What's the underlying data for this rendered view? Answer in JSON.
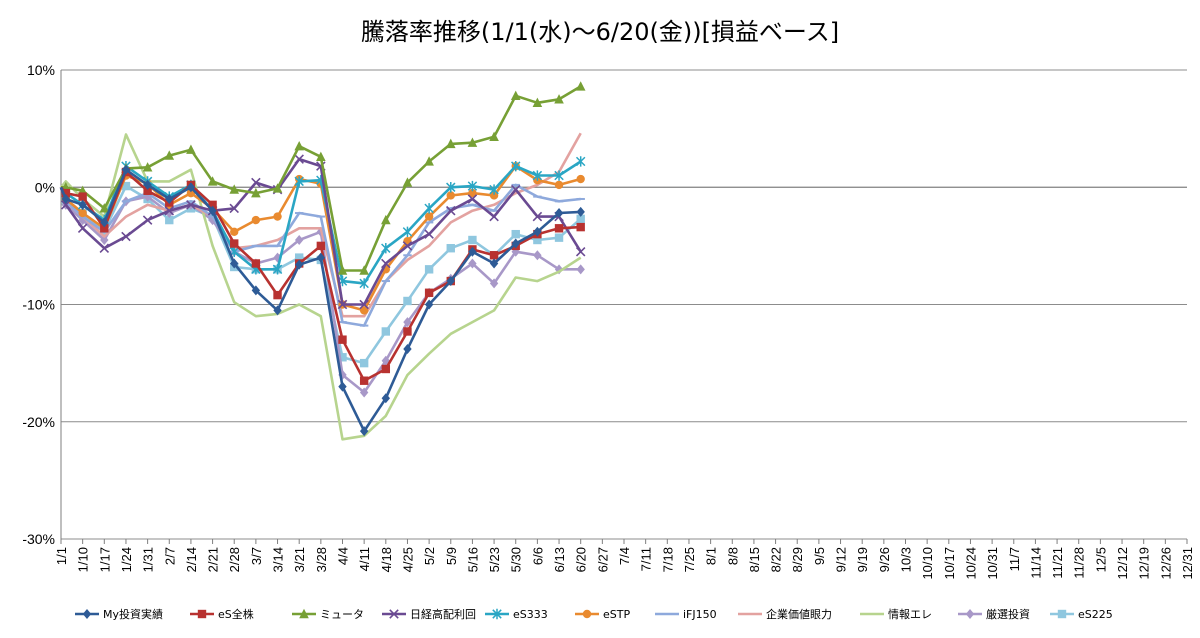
{
  "chart_data": {
    "type": "line",
    "title": "騰落率推移(1/1(水)～6/20(金))[損益ベース]",
    "xlabel": "",
    "ylabel": "",
    "ylim": [
      -30,
      10
    ],
    "yticks": [
      10,
      0,
      -10,
      -20,
      -30
    ],
    "ytick_labels": [
      "10%",
      "0%",
      "-10%",
      "-20%",
      "-30%"
    ],
    "grid": true,
    "legend_position": "bottom",
    "categories": [
      "1/1",
      "1/10",
      "1/17",
      "1/24",
      "1/31",
      "2/7",
      "2/14",
      "2/21",
      "2/28",
      "3/7",
      "3/14",
      "3/21",
      "3/28",
      "4/4",
      "4/11",
      "4/18",
      "4/25",
      "5/2",
      "5/9",
      "5/16",
      "5/23",
      "5/30",
      "6/6",
      "6/13",
      "6/20",
      "6/27",
      "7/4",
      "7/11",
      "7/18",
      "7/25",
      "8/1",
      "8/8",
      "8/15",
      "8/22",
      "8/29",
      "9/5",
      "9/12",
      "9/19",
      "9/26",
      "10/3",
      "10/10",
      "10/17",
      "10/24",
      "10/31",
      "11/7",
      "11/14",
      "11/21",
      "11/28",
      "12/5",
      "12/12",
      "12/19",
      "12/26",
      "12/31"
    ],
    "x": [
      "1/1",
      "1/3",
      "1/10",
      "1/17",
      "1/24",
      "1/31",
      "2/7",
      "2/14",
      "2/21",
      "2/28",
      "3/7",
      "3/14",
      "3/21",
      "3/28",
      "4/4",
      "4/11",
      "4/18",
      "4/25",
      "5/2",
      "5/9",
      "5/16",
      "5/23",
      "5/30",
      "6/6",
      "6/13",
      "6/20"
    ],
    "series": [
      {
        "name": "My投資実績",
        "color": "#2e5b96",
        "marker": "diamond",
        "values": [
          0,
          -1.0,
          -1.5,
          -3.0,
          1.5,
          0.2,
          -1.0,
          0.0,
          -2.0,
          -6.5,
          -8.8,
          -10.5,
          -6.6,
          -6.0,
          -17.0,
          -20.8,
          -18.0,
          -13.8,
          -10.0,
          -8.0,
          -5.5,
          -6.5,
          -4.8,
          -3.8,
          -2.2,
          -2.1
        ]
      },
      {
        "name": "eS全株",
        "color": "#b83230",
        "marker": "square",
        "values": [
          0,
          -0.5,
          -0.8,
          -3.5,
          1.3,
          -0.3,
          -1.3,
          0.2,
          -1.5,
          -4.8,
          -6.5,
          -9.2,
          -6.5,
          -5.0,
          -13.0,
          -16.5,
          -15.5,
          -12.3,
          -9.0,
          -8.0,
          -5.3,
          -5.8,
          -5.0,
          -4.0,
          -3.5,
          -3.4
        ]
      },
      {
        "name": "ミュータ",
        "color": "#77a035",
        "marker": "triangle",
        "values": [
          0,
          0,
          -0.3,
          -1.8,
          1.6,
          1.7,
          2.7,
          3.2,
          0.5,
          -0.2,
          -0.5,
          -0.1,
          3.5,
          2.6,
          -7.1,
          -7.1,
          -2.8,
          0.4,
          2.2,
          3.7,
          3.8,
          4.3,
          7.8,
          7.2,
          7.5,
          8.6
        ]
      },
      {
        "name": "日経高配利回",
        "color": "#6a4a92",
        "marker": "x",
        "values": [
          0,
          -1.5,
          -3.5,
          -5.2,
          -4.2,
          -2.8,
          -2.0,
          -1.5,
          -2.0,
          -1.8,
          0.4,
          -0.2,
          2.4,
          1.8,
          -10.0,
          -10.0,
          -6.5,
          -5.0,
          -4.0,
          -2.0,
          -1.0,
          -2.5,
          -0.2,
          -2.5,
          -2.5,
          -5.5
        ]
      },
      {
        "name": "eS333",
        "color": "#2aa6c4",
        "marker": "star",
        "values": [
          0,
          -0.5,
          -1.5,
          -2.8,
          1.8,
          0.5,
          -0.8,
          0.2,
          -2.0,
          -5.5,
          -7.0,
          -7.0,
          0.5,
          0.6,
          -8.0,
          -8.2,
          -5.2,
          -3.8,
          -1.8,
          0.0,
          0.1,
          -0.2,
          1.8,
          1.0,
          1.0,
          2.2
        ]
      },
      {
        "name": "eSTP",
        "color": "#e98a2f",
        "marker": "circle",
        "values": [
          0,
          -1.0,
          -2.2,
          -3.5,
          1.0,
          0.3,
          -1.5,
          -0.5,
          -1.8,
          -3.8,
          -2.8,
          -2.5,
          0.7,
          0.3,
          -10.0,
          -10.5,
          -7.0,
          -4.6,
          -2.5,
          -0.7,
          -0.5,
          -0.7,
          1.8,
          0.6,
          0.2,
          0.7
        ]
      },
      {
        "name": "iFJ150",
        "color": "#8ea9dc",
        "marker": "dash",
        "values": [
          0,
          -1.2,
          -2.5,
          -3.8,
          -1.2,
          -0.5,
          -1.8,
          -1.2,
          -2.5,
          -5.5,
          -5.0,
          -5.0,
          -2.2,
          -2.5,
          -11.5,
          -11.8,
          -8.0,
          -5.8,
          -3.0,
          -1.8,
          -1.5,
          -2.0,
          0.2,
          -0.8,
          -1.2,
          -1.0
        ]
      },
      {
        "name": "企業価値眼力",
        "color": "#e3a2a0",
        "marker": "none",
        "values": [
          0,
          -1.0,
          -2.5,
          -4.2,
          -2.5,
          -1.5,
          -2.0,
          -1.5,
          -2.5,
          -5.2,
          -5.0,
          -4.5,
          -3.5,
          -3.5,
          -11.0,
          -11.0,
          -8.0,
          -6.2,
          -5.0,
          -3.0,
          -2.0,
          -1.5,
          -0.5,
          0.2,
          1.3,
          4.6
        ]
      },
      {
        "name": "情報エレ",
        "color": "#b7d48e",
        "marker": "none",
        "values": [
          0,
          0.5,
          -1.0,
          -2.5,
          4.5,
          0.5,
          0.5,
          1.5,
          -5.0,
          -9.8,
          -11.0,
          -10.8,
          -10.0,
          -11.0,
          -21.5,
          -21.2,
          -19.5,
          -16.0,
          -14.2,
          -12.5,
          -11.5,
          -10.5,
          -7.7,
          -8.0,
          -7.2,
          -6.0
        ]
      },
      {
        "name": "厳選投資",
        "color": "#a898c8",
        "marker": "diamond",
        "values": [
          0,
          -1.5,
          -2.8,
          -4.5,
          -1.2,
          -0.8,
          -2.2,
          -1.5,
          -2.8,
          -5.5,
          -6.5,
          -6.0,
          -4.5,
          -3.8,
          -16.0,
          -17.5,
          -14.8,
          -11.5,
          -9.0,
          -7.8,
          -6.5,
          -8.2,
          -5.5,
          -5.8,
          -7.0,
          -7.0
        ]
      },
      {
        "name": "eS225",
        "color": "#8fc7df",
        "marker": "square",
        "values": [
          0,
          -1.2,
          -2.2,
          -3.7,
          0.1,
          -1.0,
          -2.8,
          -1.8,
          -2.5,
          -6.8,
          -7.0,
          -7.0,
          -6.0,
          -6.2,
          -14.5,
          -15.0,
          -12.3,
          -9.7,
          -7.0,
          -5.2,
          -4.5,
          -5.8,
          -4.0,
          -4.5,
          -4.3,
          -2.7
        ]
      }
    ]
  }
}
